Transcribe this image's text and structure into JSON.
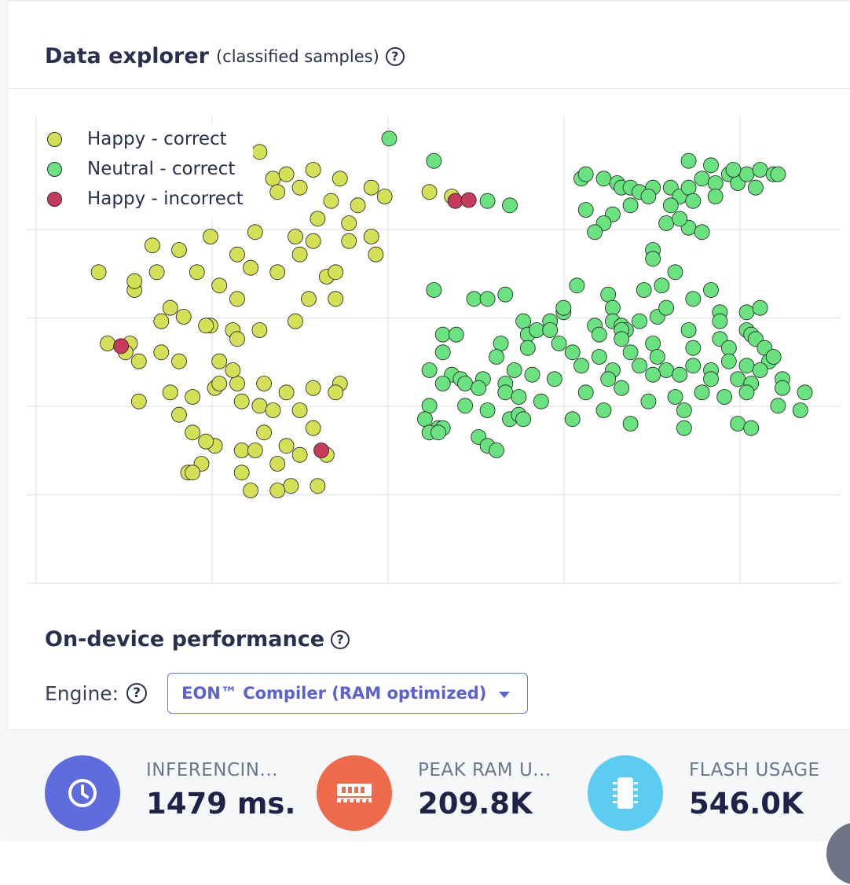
{
  "data_explorer": {
    "title": "Data explorer",
    "subtitle": "(classified samples)",
    "help_icon": "question-circle-icon"
  },
  "chart_data": {
    "type": "scatter",
    "grid": true,
    "legend_placement": "top-left",
    "series": [
      {
        "name": "Happy - correct",
        "color": "#d4e157",
        "points": [
          [
            -3.0,
            4.0
          ],
          [
            -2.1,
            3.75
          ],
          [
            -3.05,
            3.35
          ],
          [
            -2.9,
            3.5
          ],
          [
            -2.4,
            3.3
          ],
          [
            -2.25,
            3.2
          ],
          [
            -2.05,
            3.45
          ],
          [
            -1.75,
            3.8
          ],
          [
            -1.5,
            3.85
          ],
          [
            -1.35,
            3.55
          ],
          [
            -1.2,
            3.6
          ],
          [
            -1.05,
            3.45
          ],
          [
            -0.9,
            3.65
          ],
          [
            -1.3,
            3.4
          ],
          [
            -0.85,
            3.1
          ],
          [
            -0.7,
            3.3
          ],
          [
            -0.4,
            3.25
          ],
          [
            -0.25,
            3.45
          ],
          [
            -0.6,
            3.55
          ],
          [
            -1.1,
            2.9
          ],
          [
            -0.9,
            2.85
          ],
          [
            -0.75,
            2.45
          ],
          [
            -0.65,
            2.5
          ],
          [
            -0.5,
            2.85
          ],
          [
            -0.25,
            2.9
          ],
          [
            -0.5,
            3.05
          ],
          [
            -0.2,
            2.7
          ],
          [
            -3.3,
            2.5
          ],
          [
            -2.7,
            2.8
          ],
          [
            -2.4,
            2.75
          ],
          [
            -2.05,
            2.9
          ],
          [
            -1.75,
            2.7
          ],
          [
            -1.55,
            2.95
          ],
          [
            -2.9,
            2.3
          ],
          [
            -2.65,
            2.5
          ],
          [
            -2.9,
            2.4
          ],
          [
            -2.5,
            2.1
          ],
          [
            -2.2,
            2.5
          ],
          [
            -1.95,
            2.35
          ],
          [
            -1.75,
            2.2
          ],
          [
            -1.6,
            2.55
          ],
          [
            -1.3,
            2.5
          ],
          [
            -1.05,
            2.7
          ],
          [
            -2.6,
            1.95
          ],
          [
            -2.35,
            2.0
          ],
          [
            -2.05,
            1.9
          ],
          [
            -1.8,
            1.85
          ],
          [
            -1.5,
            1.85
          ],
          [
            -1.1,
            1.95
          ],
          [
            -0.95,
            2.2
          ],
          [
            -0.65,
            2.2
          ],
          [
            -3.2,
            1.7
          ],
          [
            -2.95,
            1.7
          ],
          [
            -2.85,
            1.5
          ],
          [
            -2.6,
            1.6
          ],
          [
            -2.4,
            1.5
          ],
          [
            -2.1,
            1.9
          ],
          [
            -1.75,
            1.75
          ],
          [
            -2.85,
            1.05
          ],
          [
            -2.5,
            1.15
          ],
          [
            -2.25,
            1.1
          ],
          [
            -2.0,
            1.2
          ],
          [
            -1.75,
            1.25
          ],
          [
            -1.5,
            1.0
          ],
          [
            -1.95,
            1.25
          ],
          [
            -1.7,
            1.05
          ],
          [
            -1.35,
            0.95
          ],
          [
            -1.2,
            1.15
          ],
          [
            -0.6,
            1.25
          ],
          [
            -0.65,
            1.15
          ],
          [
            -0.9,
            1.2
          ],
          [
            -1.05,
            0.95
          ],
          [
            -1.95,
            1.5
          ],
          [
            -1.8,
            1.4
          ],
          [
            -3.0,
            1.6
          ],
          [
            -1.45,
            1.25
          ],
          [
            -2.25,
            0.7
          ],
          [
            -2.0,
            0.55
          ],
          [
            -1.7,
            0.5
          ],
          [
            -1.45,
            0.7
          ],
          [
            -1.2,
            0.55
          ],
          [
            -0.9,
            0.75
          ],
          [
            -2.1,
            0.6
          ],
          [
            -1.55,
            0.5
          ],
          [
            -2.4,
            0.9
          ],
          [
            -2.15,
            0.35
          ],
          [
            -1.7,
            0.25
          ],
          [
            -1.3,
            0.35
          ],
          [
            -1.05,
            0.45
          ],
          [
            -0.75,
            0.45
          ],
          [
            -1.15,
            0.1
          ],
          [
            -0.85,
            0.1
          ],
          [
            -1.6,
            0.05
          ],
          [
            -1.3,
            0.05
          ],
          [
            -2.3,
            0.25
          ],
          [
            -2.25,
            0.25
          ],
          [
            -0.1,
            3.35
          ],
          [
            0.4,
            3.4
          ],
          [
            0.65,
            3.35
          ]
        ]
      },
      {
        "name": "Neutral - correct",
        "color": "#69e27f",
        "points": [
          [
            -0.05,
            4.0
          ],
          [
            0.45,
            3.75
          ],
          [
            1.05,
            3.3
          ],
          [
            1.3,
            3.25
          ],
          [
            2.1,
            3.55
          ],
          [
            2.15,
            3.6
          ],
          [
            2.35,
            3.55
          ],
          [
            2.5,
            3.5
          ],
          [
            2.55,
            3.45
          ],
          [
            2.65,
            3.45
          ],
          [
            2.75,
            3.4
          ],
          [
            2.9,
            3.45
          ],
          [
            3.1,
            3.45
          ],
          [
            3.2,
            3.35
          ],
          [
            3.3,
            3.45
          ],
          [
            3.45,
            3.55
          ],
          [
            3.6,
            3.5
          ],
          [
            3.75,
            3.6
          ],
          [
            3.85,
            3.5
          ],
          [
            3.95,
            3.6
          ],
          [
            4.1,
            3.65
          ],
          [
            4.25,
            3.6
          ],
          [
            3.55,
            3.7
          ],
          [
            3.8,
            3.65
          ],
          [
            4.3,
            3.6
          ],
          [
            3.3,
            3.75
          ],
          [
            4.05,
            3.45
          ],
          [
            3.6,
            3.35
          ],
          [
            2.15,
            3.2
          ],
          [
            2.45,
            3.15
          ],
          [
            2.65,
            3.25
          ],
          [
            2.85,
            3.35
          ],
          [
            3.1,
            3.25
          ],
          [
            3.3,
            3.0
          ],
          [
            3.05,
            3.05
          ],
          [
            3.2,
            3.1
          ],
          [
            2.35,
            3.05
          ],
          [
            2.25,
            2.95
          ],
          [
            3.35,
            3.3
          ],
          [
            3.45,
            2.95
          ],
          [
            2.9,
            2.75
          ],
          [
            2.9,
            2.65
          ],
          [
            0.45,
            2.3
          ],
          [
            0.9,
            2.2
          ],
          [
            1.05,
            2.2
          ],
          [
            1.25,
            2.25
          ],
          [
            2.05,
            2.35
          ],
          [
            2.4,
            2.25
          ],
          [
            2.45,
            2.1
          ],
          [
            2.8,
            2.3
          ],
          [
            3.0,
            2.35
          ],
          [
            3.15,
            2.5
          ],
          [
            3.55,
            2.3
          ],
          [
            1.45,
            1.95
          ],
          [
            1.75,
            1.95
          ],
          [
            1.9,
            2.05
          ],
          [
            1.9,
            2.1
          ],
          [
            2.25,
            1.9
          ],
          [
            2.45,
            1.95
          ],
          [
            2.55,
            1.9
          ],
          [
            2.6,
            1.85
          ],
          [
            2.75,
            1.95
          ],
          [
            2.95,
            2.0
          ],
          [
            3.05,
            2.1
          ],
          [
            3.35,
            2.2
          ],
          [
            3.65,
            2.05
          ],
          [
            3.95,
            2.05
          ],
          [
            4.1,
            2.1
          ],
          [
            0.55,
            1.8
          ],
          [
            0.7,
            1.8
          ],
          [
            1.2,
            1.7
          ],
          [
            1.5,
            1.8
          ],
          [
            1.6,
            1.85
          ],
          [
            1.75,
            1.85
          ],
          [
            1.85,
            1.7
          ],
          [
            2.3,
            1.8
          ],
          [
            2.55,
            1.85
          ],
          [
            2.55,
            1.75
          ],
          [
            2.9,
            1.7
          ],
          [
            3.3,
            1.85
          ],
          [
            3.65,
            1.95
          ],
          [
            3.95,
            1.85
          ],
          [
            4.0,
            1.8
          ],
          [
            0.55,
            1.6
          ],
          [
            1.15,
            1.55
          ],
          [
            1.5,
            1.65
          ],
          [
            2.0,
            1.6
          ],
          [
            2.3,
            1.55
          ],
          [
            2.65,
            1.6
          ],
          [
            2.95,
            1.55
          ],
          [
            3.35,
            1.65
          ],
          [
            3.65,
            1.75
          ],
          [
            3.75,
            1.65
          ],
          [
            4.05,
            1.75
          ],
          [
            4.15,
            1.65
          ],
          [
            0.4,
            1.4
          ],
          [
            0.65,
            1.35
          ],
          [
            0.75,
            1.3
          ],
          [
            1.0,
            1.3
          ],
          [
            1.35,
            1.4
          ],
          [
            1.55,
            1.35
          ],
          [
            2.1,
            1.45
          ],
          [
            2.45,
            1.4
          ],
          [
            2.75,
            1.45
          ],
          [
            3.05,
            1.4
          ],
          [
            3.35,
            1.45
          ],
          [
            3.55,
            1.4
          ],
          [
            3.75,
            1.5
          ],
          [
            3.95,
            1.45
          ],
          [
            4.2,
            1.5
          ],
          [
            0.55,
            1.25
          ],
          [
            0.8,
            1.25
          ],
          [
            0.95,
            1.2
          ],
          [
            1.25,
            1.25
          ],
          [
            1.8,
            1.3
          ],
          [
            2.4,
            1.3
          ],
          [
            2.9,
            1.35
          ],
          [
            3.2,
            1.35
          ],
          [
            3.55,
            1.3
          ],
          [
            3.85,
            1.3
          ],
          [
            4.0,
            1.25
          ],
          [
            4.35,
            1.3
          ],
          [
            4.1,
            1.4
          ],
          [
            4.25,
            1.55
          ],
          [
            1.25,
            1.15
          ],
          [
            1.4,
            1.1
          ],
          [
            1.65,
            1.05
          ],
          [
            2.15,
            1.15
          ],
          [
            2.55,
            1.2
          ],
          [
            2.85,
            1.05
          ],
          [
            3.15,
            1.1
          ],
          [
            3.45,
            1.15
          ],
          [
            3.7,
            1.1
          ],
          [
            3.95,
            1.15
          ],
          [
            4.35,
            1.2
          ],
          [
            4.6,
            1.15
          ],
          [
            0.4,
            1.0
          ],
          [
            0.8,
            1.0
          ],
          [
            1.05,
            0.95
          ],
          [
            1.3,
            0.85
          ],
          [
            2.35,
            0.95
          ],
          [
            3.25,
            0.95
          ],
          [
            4.3,
            1.0
          ],
          [
            4.55,
            0.95
          ],
          [
            0.35,
            0.85
          ],
          [
            0.5,
            0.75
          ],
          [
            0.55,
            0.75
          ],
          [
            0.4,
            0.7
          ],
          [
            0.5,
            0.7
          ],
          [
            0.95,
            0.65
          ],
          [
            1.05,
            0.55
          ],
          [
            1.15,
            0.5
          ],
          [
            1.4,
            0.9
          ],
          [
            1.45,
            0.85
          ],
          [
            2.0,
            0.85
          ],
          [
            2.65,
            0.8
          ],
          [
            3.25,
            0.75
          ],
          [
            3.85,
            0.8
          ],
          [
            4.0,
            0.75
          ]
        ]
      },
      {
        "name": "Happy - incorrect",
        "color": "#c73a5b",
        "points": [
          [
            -3.05,
            1.67
          ],
          [
            0.69,
            3.3
          ],
          [
            0.84,
            3.31
          ],
          [
            -0.81,
            0.5
          ]
        ]
      }
    ]
  },
  "performance": {
    "title": "On-device performance",
    "help_icon": "question-circle-icon",
    "engine_label": "Engine:",
    "engine_value": "EON™ Compiler (RAM optimized)",
    "metrics": [
      {
        "label": "INFERENCIN...",
        "value": "1479 ms.",
        "icon": "clock-icon",
        "color": "#5f6cde"
      },
      {
        "label": "PEAK RAM U...",
        "value": "209.8K",
        "icon": "ram-chip-icon",
        "color": "#ee6a4b"
      },
      {
        "label": "FLASH USAGE",
        "value": "546.0K",
        "icon": "flash-chip-icon",
        "color": "#5ccdf0"
      }
    ]
  }
}
